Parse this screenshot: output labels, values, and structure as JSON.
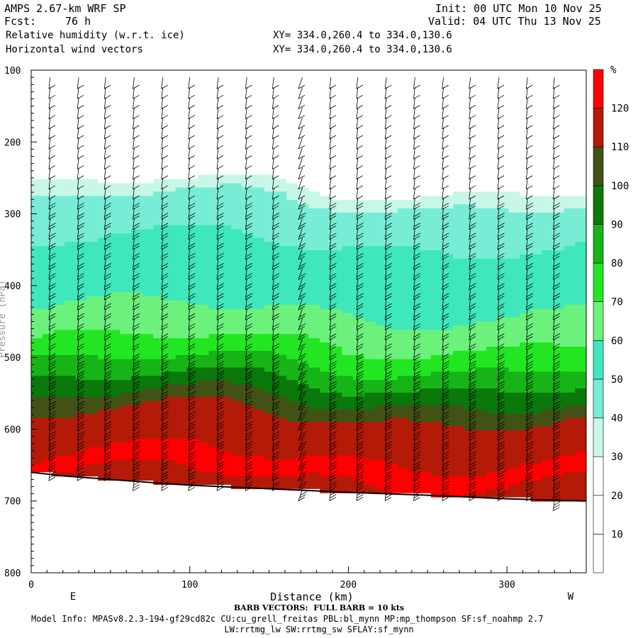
{
  "header": {
    "model_line": "AMPS 2.67-km WRF SP",
    "fcst_label": "Fcst:",
    "fcst_value": "76 h",
    "field1": "Relative humidity (w.r.t. ice)",
    "field2": "Horizontal wind vectors",
    "xy1": "XY= 334.0,260.4 to 334.0,130.6",
    "xy2": "XY= 334.0,260.4 to 334.0,130.6",
    "init": "Init: 00 UTC Mon 10 Nov 25",
    "valid": "Valid: 04 UTC Thu 13 Nov 25"
  },
  "footer": {
    "barb_note": "BARB VECTORS:  FULL BARB = 10 kts",
    "model_info_1": "Model Info: MPASv8.2.3-194-gf29cd82c CU:cu_grell_freitas PBL:bl_mynn MP:mp_thompson SF:sf_noahmp 2.7",
    "model_info_2": "LW:rrtmg_lw SW:rrtmg_sw SFLAY:sf_mynn"
  },
  "chart_data": {
    "type": "heatmap",
    "xlabel": "Distance (km)",
    "ylabel": "Pressure (hPa)",
    "xlim": [
      0,
      350
    ],
    "ylim": [
      800,
      100
    ],
    "x_ticks": [
      0,
      100,
      200,
      300
    ],
    "y_ticks": [
      100,
      200,
      300,
      400,
      500,
      600,
      700,
      800
    ],
    "endpoint_labels": {
      "left": "E",
      "right": "W"
    },
    "colorbar": {
      "unit": "%",
      "levels": [
        10,
        20,
        30,
        40,
        50,
        60,
        70,
        80,
        90,
        100,
        110,
        120
      ],
      "colors": [
        "#ffffff",
        "#ffffff",
        "#ffffff",
        "#c8f7e8",
        "#78edd6",
        "#3ee8bc",
        "#6cf27c",
        "#22e622",
        "#16b416",
        "#0a780a",
        "#425216",
        "#b41a08",
        "#ff0000"
      ]
    },
    "rh_profile_pressure_hPa": [
      100,
      250,
      270,
      300,
      380,
      450,
      480,
      510,
      540,
      580,
      620,
      650,
      680,
      700
    ],
    "rh_profile_percent": [
      10,
      20,
      35,
      48,
      52,
      62,
      70,
      80,
      92,
      110,
      115,
      123,
      118,
      115
    ],
    "terrain_surface_hPa": [
      [
        0,
        660
      ],
      [
        20,
        665
      ],
      [
        50,
        670
      ],
      [
        80,
        675
      ],
      [
        100,
        678
      ],
      [
        130,
        681
      ],
      [
        160,
        684
      ],
      [
        200,
        688
      ],
      [
        250,
        692
      ],
      [
        300,
        697
      ],
      [
        350,
        700
      ]
    ],
    "barb_x_km": [
      12,
      30,
      47,
      65,
      83,
      100,
      118,
      136,
      153,
      171,
      189,
      206,
      224,
      242,
      260,
      277,
      295,
      313,
      330
    ]
  }
}
